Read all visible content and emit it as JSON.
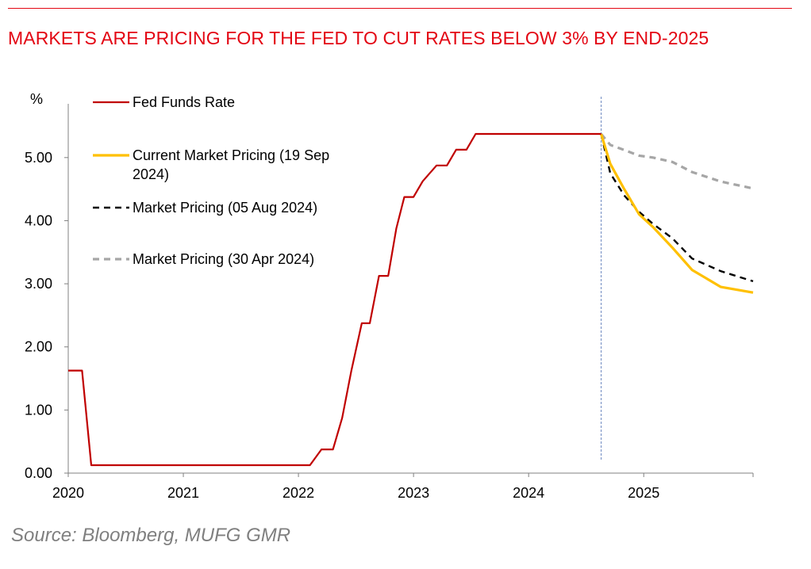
{
  "colors": {
    "accent": "#e30613",
    "fed_funds": "#c00000",
    "current": "#ffc000",
    "aug": "#000000",
    "apr": "#a6a6a6",
    "vline": "#7f97c8",
    "axis": "#808080",
    "text": "#000000",
    "source": "#7f7f7f"
  },
  "header": {
    "title": "MARKETS ARE PRICING FOR THE FED TO CUT RATES BELOW 3% BY END-2025"
  },
  "footer": {
    "source": "Source: Bloomberg, MUFG GMR"
  },
  "chart_data": {
    "type": "line",
    "title": "MARKETS ARE PRICING FOR THE FED TO CUT RATES BELOW 3% BY END-2025",
    "ylabel": "%",
    "xlabel": "",
    "xlim": [
      2020.0,
      2025.95
    ],
    "ylim": [
      0,
      5.5
    ],
    "yticks": [
      0,
      1,
      2,
      3,
      4,
      5
    ],
    "ytick_labels": [
      "0.00",
      "1.00",
      "2.00",
      "3.00",
      "4.00",
      "5.00"
    ],
    "xticks": [
      2020,
      2021,
      2022,
      2023,
      2024,
      2025
    ],
    "xtick_labels": [
      "2020",
      "2021",
      "2022",
      "2023",
      "2024",
      "2025"
    ],
    "grid": false,
    "legend_position": "top-left",
    "vertical_marker_x": 2024.63,
    "series": [
      {
        "name": "Fed Funds Rate",
        "style": "solid",
        "x": [
          2020.0,
          2020.12,
          2020.2,
          2022.1,
          2022.2,
          2022.3,
          2022.38,
          2022.46,
          2022.55,
          2022.62,
          2022.7,
          2022.78,
          2022.85,
          2022.92,
          2023.0,
          2023.08,
          2023.2,
          2023.29,
          2023.37,
          2023.46,
          2023.54,
          2024.63
        ],
        "y": [
          1.625,
          1.625,
          0.125,
          0.125,
          0.375,
          0.375,
          0.875,
          1.625,
          2.375,
          2.375,
          3.125,
          3.125,
          3.875,
          4.375,
          4.375,
          4.625,
          4.875,
          4.875,
          5.125,
          5.125,
          5.375,
          5.375
        ]
      },
      {
        "name": "Current Market Pricing (19 Sep 2024)",
        "style": "solid",
        "x": [
          2024.63,
          2024.71,
          2024.83,
          2024.96,
          2025.08,
          2025.25,
          2025.42,
          2025.67,
          2025.95
        ],
        "y": [
          5.375,
          4.9,
          4.5,
          4.1,
          3.9,
          3.57,
          3.22,
          2.95,
          2.86
        ]
      },
      {
        "name": "Market Pricing (05 Aug 2024)",
        "style": "dashed",
        "x": [
          2024.63,
          2024.71,
          2024.83,
          2024.96,
          2025.08,
          2025.25,
          2025.42,
          2025.67,
          2025.95
        ],
        "y": [
          5.375,
          4.75,
          4.4,
          4.14,
          3.95,
          3.72,
          3.4,
          3.2,
          3.04
        ]
      },
      {
        "name": "Market Pricing (30 Apr 2024)",
        "style": "dashed",
        "x": [
          2024.63,
          2024.71,
          2024.83,
          2024.96,
          2025.08,
          2025.25,
          2025.42,
          2025.67,
          2025.95
        ],
        "y": [
          5.375,
          5.2,
          5.12,
          5.03,
          5.0,
          4.93,
          4.77,
          4.62,
          4.51
        ]
      }
    ]
  }
}
